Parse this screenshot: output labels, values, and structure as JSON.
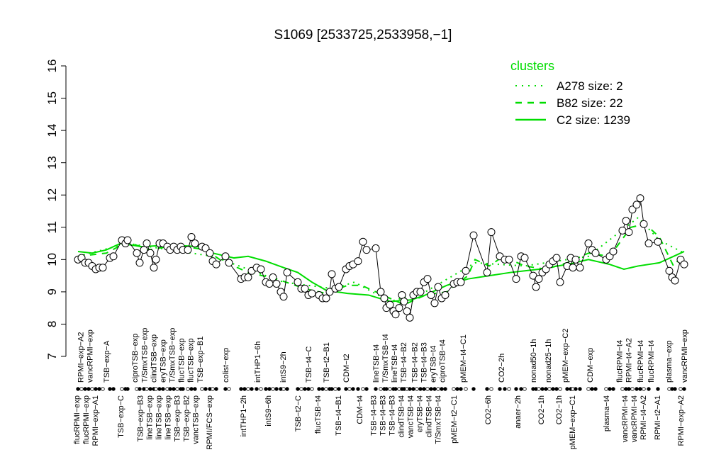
{
  "chart_data": {
    "type": "line",
    "title": "S1069 [2533725,2533958,−1]",
    "xlabel": "",
    "ylabel": "",
    "ylim": [
      7,
      16
    ],
    "xlim": [
      0,
      175
    ],
    "yticks": [
      7,
      8,
      9,
      10,
      11,
      12,
      13,
      14,
      15,
      16
    ],
    "grid": false,
    "legend": {
      "title": "clusters",
      "placement": "top-right",
      "color": "#00dd00",
      "entries": [
        {
          "label": "A278 size: 2",
          "style": "dotted"
        },
        {
          "label": "B82 size: 22",
          "style": "dashed"
        },
        {
          "label": "C2 size: 1239",
          "style": "solid"
        }
      ]
    },
    "colors": {
      "clusters": "#00dd00",
      "points": "#000000"
    },
    "points": [
      [
        2,
        10.0
      ],
      [
        3,
        10.05
      ],
      [
        4,
        9.9
      ],
      [
        5,
        9.9
      ],
      [
        6,
        9.8
      ],
      [
        7,
        9.7
      ],
      [
        8,
        9.75
      ],
      [
        9,
        9.75
      ],
      [
        11,
        10.05
      ],
      [
        12,
        10.1
      ],
      [
        14.4,
        10.6
      ],
      [
        15.4,
        10.5
      ],
      [
        16,
        10.6
      ],
      [
        18.6,
        10.2
      ],
      [
        19.4,
        9.9
      ],
      [
        20.6,
        10.3
      ],
      [
        21.4,
        10.5
      ],
      [
        22.4,
        10.2
      ],
      [
        23.4,
        9.75
      ],
      [
        24,
        10.0
      ],
      [
        25,
        10.5
      ],
      [
        26,
        10.5
      ],
      [
        27.2,
        10.4
      ],
      [
        28,
        10.3
      ],
      [
        29,
        10.4
      ],
      [
        30,
        10.3
      ],
      [
        31,
        10.4
      ],
      [
        31.6,
        10.3
      ],
      [
        33,
        10.3
      ],
      [
        34,
        10.7
      ],
      [
        35,
        10.5
      ],
      [
        37,
        10.4
      ],
      [
        38,
        10.35
      ],
      [
        39.2,
        10.2
      ],
      [
        40,
        9.95
      ],
      [
        41,
        9.85
      ],
      [
        43.6,
        10.1
      ],
      [
        44.6,
        9.9
      ],
      [
        48,
        9.4
      ],
      [
        49,
        9.45
      ],
      [
        50,
        9.45
      ],
      [
        51,
        9.65
      ],
      [
        52.4,
        9.75
      ],
      [
        53.6,
        9.7
      ],
      [
        55,
        9.3
      ],
      [
        56,
        9.25
      ],
      [
        57,
        9.45
      ],
      [
        58,
        9.25
      ],
      [
        59.2,
        9.0
      ],
      [
        60,
        8.85
      ],
      [
        61,
        9.6
      ],
      [
        64,
        9.3
      ],
      [
        65,
        9.1
      ],
      [
        66,
        9.1
      ],
      [
        67,
        8.9
      ],
      [
        68,
        8.95
      ],
      [
        70,
        8.9
      ],
      [
        71,
        8.8
      ],
      [
        72,
        8.8
      ],
      [
        73,
        9.0
      ],
      [
        73.6,
        9.55
      ],
      [
        74.6,
        9.1
      ],
      [
        75.6,
        9.15
      ],
      [
        77.6,
        9.7
      ],
      [
        78.6,
        9.8
      ],
      [
        79.6,
        9.85
      ],
      [
        81,
        9.95
      ],
      [
        82.4,
        10.55
      ],
      [
        83.4,
        10.3
      ],
      [
        86,
        10.35
      ],
      [
        87.4,
        9.0
      ],
      [
        88.4,
        8.8
      ],
      [
        89,
        8.5
      ],
      [
        90,
        8.6
      ],
      [
        91,
        8.4
      ],
      [
        91.6,
        8.3
      ],
      [
        92.6,
        8.5
      ],
      [
        93.4,
        8.9
      ],
      [
        94,
        8.7
      ],
      [
        94.8,
        8.4
      ],
      [
        95.6,
        8.2
      ],
      [
        96.6,
        8.9
      ],
      [
        97.6,
        9.0
      ],
      [
        98.6,
        9.0
      ],
      [
        99.6,
        9.3
      ],
      [
        100.6,
        9.4
      ],
      [
        101.6,
        8.9
      ],
      [
        102.6,
        8.65
      ],
      [
        103.6,
        9.15
      ],
      [
        104.6,
        8.8
      ],
      [
        105.6,
        8.9
      ],
      [
        108,
        9.25
      ],
      [
        109,
        9.3
      ],
      [
        110,
        9.3
      ],
      [
        111.4,
        9.65
      ],
      [
        113.6,
        10.75
      ],
      [
        117.4,
        9.6
      ],
      [
        118.6,
        10.85
      ],
      [
        121,
        10.1
      ],
      [
        122.4,
        10.0
      ],
      [
        123.6,
        10.0
      ],
      [
        125.6,
        9.4
      ],
      [
        127,
        10.1
      ],
      [
        128,
        10.05
      ],
      [
        130.4,
        9.5
      ],
      [
        131.2,
        9.15
      ],
      [
        132,
        9.4
      ],
      [
        133,
        9.6
      ],
      [
        134,
        9.7
      ],
      [
        135,
        9.85
      ],
      [
        136,
        9.95
      ],
      [
        137,
        10.05
      ],
      [
        138,
        9.3
      ],
      [
        140,
        9.8
      ],
      [
        141,
        10.05
      ],
      [
        141.6,
        9.75
      ],
      [
        142.4,
        10.0
      ],
      [
        143.6,
        9.75
      ],
      [
        146,
        10.5
      ],
      [
        147,
        10.3
      ],
      [
        148,
        10.2
      ],
      [
        151,
        10.0
      ],
      [
        152,
        10.1
      ],
      [
        153,
        10.25
      ],
      [
        155.6,
        10.9
      ],
      [
        156.6,
        11.2
      ],
      [
        157.4,
        10.85
      ],
      [
        158.4,
        11.55
      ],
      [
        159.6,
        11.7
      ],
      [
        160.6,
        11.9
      ],
      [
        161.6,
        11.1
      ],
      [
        163,
        10.5
      ],
      [
        165.6,
        10.55
      ],
      [
        168.8,
        9.65
      ],
      [
        169.6,
        9.45
      ],
      [
        170.4,
        9.35
      ],
      [
        172,
        10.0
      ],
      [
        173,
        9.85
      ]
    ],
    "series": [
      {
        "name": "C2 size: 1239",
        "style": "solid",
        "points": [
          [
            2,
            10.25
          ],
          [
            6,
            10.2
          ],
          [
            10,
            10.3
          ],
          [
            14,
            10.5
          ],
          [
            20,
            10.4
          ],
          [
            28,
            10.45
          ],
          [
            36,
            10.4
          ],
          [
            40,
            10.2
          ],
          [
            46,
            10.05
          ],
          [
            50,
            10.1
          ],
          [
            55,
            9.95
          ],
          [
            60,
            9.75
          ],
          [
            64,
            9.6
          ],
          [
            68,
            9.3
          ],
          [
            72,
            9.05
          ],
          [
            78,
            8.95
          ],
          [
            84,
            8.9
          ],
          [
            90,
            8.7
          ],
          [
            96,
            8.75
          ],
          [
            100,
            8.9
          ],
          [
            106,
            9.2
          ],
          [
            112,
            9.4
          ],
          [
            118,
            9.5
          ],
          [
            124,
            9.6
          ],
          [
            132,
            9.7
          ],
          [
            140,
            9.85
          ],
          [
            146,
            10.0
          ],
          [
            152,
            9.85
          ],
          [
            156,
            9.7
          ],
          [
            160,
            9.8
          ],
          [
            166,
            9.9
          ],
          [
            170,
            10.1
          ],
          [
            173,
            10.25
          ]
        ]
      },
      {
        "name": "B82 size: 22",
        "style": "dashed",
        "points": [
          [
            2,
            10.1
          ],
          [
            10,
            10.2
          ],
          [
            16,
            10.55
          ],
          [
            22,
            10.3
          ],
          [
            30,
            10.45
          ],
          [
            38,
            10.3
          ],
          [
            42,
            10.0
          ],
          [
            50,
            9.6
          ],
          [
            58,
            9.4
          ],
          [
            66,
            9.1
          ],
          [
            72,
            8.95
          ],
          [
            78,
            9.2
          ],
          [
            82,
            9.2
          ],
          [
            88,
            8.9
          ],
          [
            94,
            8.6
          ],
          [
            100,
            8.9
          ],
          [
            106,
            9.0
          ],
          [
            112,
            9.5
          ],
          [
            114,
            10.0
          ],
          [
            118,
            9.8
          ],
          [
            122,
            10.1
          ],
          [
            128,
            9.8
          ],
          [
            134,
            9.7
          ],
          [
            140,
            9.9
          ],
          [
            146,
            10.2
          ],
          [
            152,
            10.1
          ],
          [
            158,
            11.0
          ],
          [
            162,
            11.1
          ],
          [
            166,
            10.7
          ],
          [
            170,
            9.8
          ],
          [
            173,
            10.2
          ]
        ]
      },
      {
        "name": "A278 size: 2",
        "style": "dotted",
        "points": [
          [
            2,
            10.1
          ],
          [
            16,
            10.5
          ],
          [
            40,
            10.1
          ],
          [
            60,
            9.3
          ],
          [
            74,
            9.1
          ],
          [
            80,
            9.3
          ],
          [
            90,
            8.7
          ],
          [
            100,
            9.0
          ],
          [
            114,
            9.9
          ],
          [
            128,
            9.8
          ],
          [
            146,
            10.1
          ],
          [
            160,
            11.3
          ],
          [
            166,
            10.6
          ],
          [
            173,
            10.2
          ]
        ]
      }
    ],
    "labels_top": [
      [
        3.2,
        "RPMI−exp−A2"
      ],
      [
        4.8,
        "vancRPMI−exp"
      ],
      [
        10,
        "TSB−exp−A"
      ],
      [
        18,
        "ciproTSB−exp"
      ],
      [
        21.2,
        "T/SmxTSB−exp"
      ],
      [
        23.4,
        "clindTSB−exp"
      ],
      [
        26.4,
        "eryTSB−exp"
      ],
      [
        28.8,
        "T/SmxTSB−exp"
      ],
      [
        30.6,
        "flucTSB−exp"
      ],
      [
        32.8,
        "flucTSB−exp"
      ],
      [
        36.4,
        "TSB−exp−B1"
      ],
      [
        43.6,
        "colist−exp"
      ],
      [
        52.6,
        "intTHP1−6h"
      ],
      [
        59.8,
        "intS9−2h"
      ],
      [
        67,
        "TSB−t4−C"
      ],
      [
        72,
        "TSB−t2−B1"
      ],
      [
        77.6,
        "CDM−t2"
      ],
      [
        86.6,
        "lineTSB−t4"
      ],
      [
        88.4,
        "T/SmxTSB−t4"
      ],
      [
        91,
        "lineTSB−t4"
      ],
      [
        93.4,
        "TSB−t4−B2"
      ],
      [
        97,
        "TSB−t4−B2"
      ],
      [
        99.6,
        "TSB−t4−B3"
      ],
      [
        102,
        "eryTSB−t4"
      ],
      [
        104.4,
        "ciproTSB−t4"
      ],
      [
        110.6,
        "pMEM−t4−C1"
      ],
      [
        121.4,
        "CO2−2h"
      ],
      [
        130.4,
        "nonad50−1h"
      ],
      [
        134.6,
        "nonad25−1h"
      ],
      [
        139.4,
        "pMEM−exp−C2"
      ],
      [
        146.4,
        "CDM−exp"
      ],
      [
        155.4,
        "flucRPMI−t4"
      ],
      [
        156.6,
        "RPMI−t4−A2"
      ],
      [
        160.6,
        "flucRPMI−t4"
      ],
      [
        163.6,
        "flucRPMI−t4"
      ],
      [
        168.6,
        "plasma−exp"
      ],
      [
        173,
        "vancRPMI−exp"
      ]
    ],
    "labels_bottom": [
      [
        2,
        "flucRPMI−exp"
      ],
      [
        4.2,
        "flucRPMI−exp"
      ],
      [
        6.4,
        "RPMI−exp−A1"
      ],
      [
        14,
        "TSB−exp−C"
      ],
      [
        20.6,
        "TSB−exp−B3"
      ],
      [
        22.6,
        "lineTSB−exp"
      ],
      [
        25,
        "lineTSB−exp"
      ],
      [
        27.6,
        "lineTSB−exp"
      ],
      [
        29.4,
        "TSB−exp−B3"
      ],
      [
        31.6,
        "TSB−exp−B2"
      ],
      [
        34,
        "vancTSB−exp"
      ],
      [
        39,
        "RPMI/FCS−exp"
      ],
      [
        48.6,
        "intTHP1−2h"
      ],
      [
        55.6,
        "intS9−6h"
      ],
      [
        64,
        "TSB−t2−C"
      ],
      [
        69.6,
        "flucTSB−t4"
      ],
      [
        75.4,
        "TSB−t4−B1"
      ],
      [
        81.4,
        "CDM−t4"
      ],
      [
        86.6,
        "TSB−t4−B3"
      ],
      [
        87.6,
        "TSB−t4−B3"
      ],
      [
        90.4,
        "TSB−t4−B3"
      ],
      [
        93,
        "clindTSB−t4"
      ],
      [
        95.4,
        "vancTSB−t4"
      ],
      [
        98,
        "eryTSB−t4"
      ],
      [
        100.6,
        "clindTSB−t4"
      ],
      [
        103.4,
        "T/SmxTSB−t4"
      ],
      [
        108,
        "pMEM−t2−C1"
      ],
      [
        117.6,
        "CO2−6h"
      ],
      [
        126,
        "anaer−2h"
      ],
      [
        132.6,
        "CO2−1h"
      ],
      [
        137.6,
        "CO2−1h"
      ],
      [
        141.4,
        "pMEM−exp−C1"
      ],
      [
        151,
        "plasma−t4"
      ],
      [
        157,
        "vancRPMI−t4"
      ],
      [
        158.4,
        "vancRPMI−t4"
      ],
      [
        161,
        "RPMI−t4−A2"
      ],
      [
        165.4,
        "RPMI−t2−A1"
      ],
      [
        172,
        "RPMI−exp−A2"
      ]
    ]
  }
}
